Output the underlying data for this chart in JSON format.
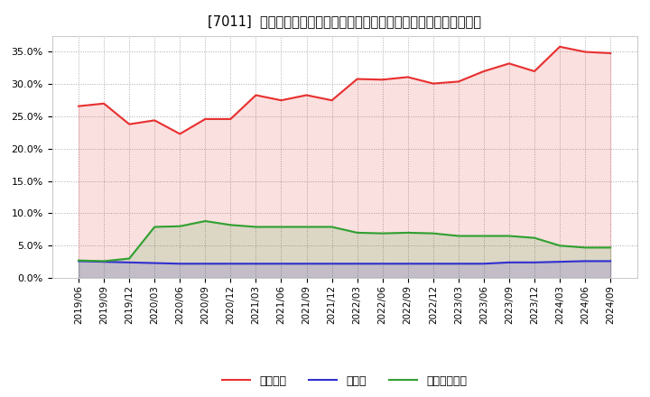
{
  "title": "[7011]  自己資本、のれん、繰延税金資産の総資産に対する比率の推移",
  "x_labels": [
    "2019/06",
    "2019/09",
    "2019/12",
    "2020/03",
    "2020/06",
    "2020/09",
    "2020/12",
    "2021/03",
    "2021/06",
    "2021/09",
    "2021/12",
    "2022/03",
    "2022/06",
    "2022/09",
    "2022/12",
    "2023/03",
    "2023/06",
    "2023/09",
    "2023/12",
    "2024/03",
    "2024/06",
    "2024/09"
  ],
  "jikoshihon": [
    0.266,
    0.27,
    0.238,
    0.244,
    0.223,
    0.246,
    0.246,
    0.283,
    0.275,
    0.283,
    0.275,
    0.308,
    0.307,
    0.311,
    0.301,
    0.304,
    0.32,
    0.332,
    0.32,
    0.358,
    0.35,
    0.348
  ],
  "noren": [
    0.026,
    0.025,
    0.024,
    0.023,
    0.022,
    0.022,
    0.022,
    0.022,
    0.022,
    0.022,
    0.022,
    0.022,
    0.022,
    0.022,
    0.022,
    0.022,
    0.022,
    0.024,
    0.024,
    0.025,
    0.026,
    0.026
  ],
  "kurinobe": [
    0.027,
    0.026,
    0.03,
    0.079,
    0.08,
    0.088,
    0.082,
    0.079,
    0.079,
    0.079,
    0.079,
    0.07,
    0.069,
    0.07,
    0.069,
    0.065,
    0.065,
    0.065,
    0.062,
    0.05,
    0.047,
    0.047
  ],
  "jikoshihon_color": "#e83030",
  "noren_color": "#3030d0",
  "kurinobe_color": "#30a030",
  "background_color": "#ffffff",
  "plot_bg_color": "#ffffff",
  "grid_color": "#aaaaaa",
  "ylim": [
    0.0,
    0.375
  ],
  "yticks": [
    0.0,
    0.05,
    0.1,
    0.15,
    0.2,
    0.25,
    0.3,
    0.35
  ],
  "legend_jikoshihon": "自己資本",
  "legend_noren": "のれん",
  "legend_kurinobe": "繰延税金資産",
  "title_bracket": "[7011]",
  "title_main": "自己資本、のれん、繰延税金資産の総資産に対する比率の推移"
}
